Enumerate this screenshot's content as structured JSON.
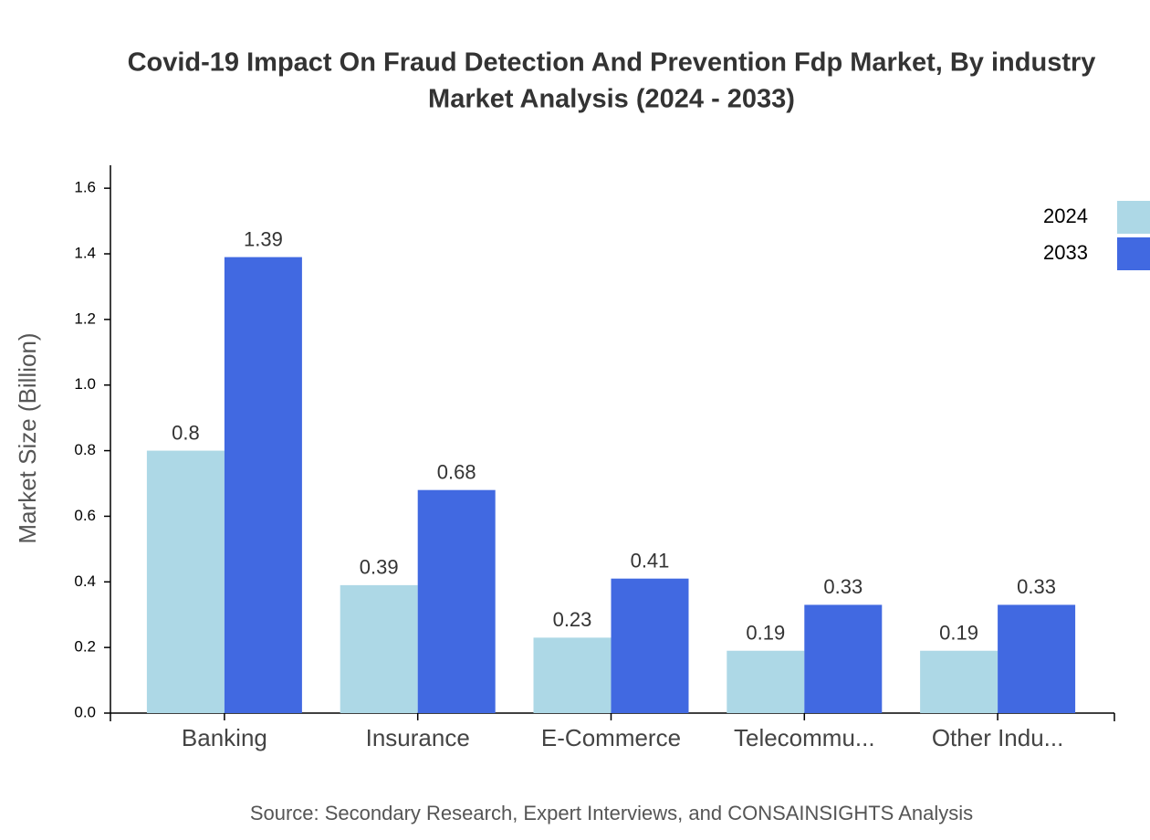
{
  "chart_data": {
    "type": "bar",
    "title": [
      "Covid-19 Impact On Fraud Detection And Prevention Fdp Market, By industry",
      "Market Analysis (2024 - 2033)"
    ],
    "y_label": "Market Size (Billion)",
    "source": "Source: Secondary Research, Expert Interviews, and CONSAINSIGHTS Analysis",
    "categories": [
      "Banking",
      "Insurance",
      "E-Commerce",
      "Telecommu...",
      "Other Indu..."
    ],
    "series": [
      {
        "name": "2024",
        "color": "#add8e6",
        "values": [
          0.8,
          0.39,
          0.23,
          0.19,
          0.19
        ]
      },
      {
        "name": "2033",
        "color": "#4169e1",
        "values": [
          1.39,
          0.68,
          0.41,
          0.33,
          0.33
        ]
      }
    ],
    "ylim": [
      0,
      1.67
    ],
    "yticks": [
      {
        "value": 0,
        "label": "0.0"
      },
      0.2,
      0.4,
      0.6,
      0.8,
      {
        "value": 1,
        "label": "1.0"
      },
      1.2,
      1.4,
      1.6
    ],
    "legend": "top-right"
  }
}
